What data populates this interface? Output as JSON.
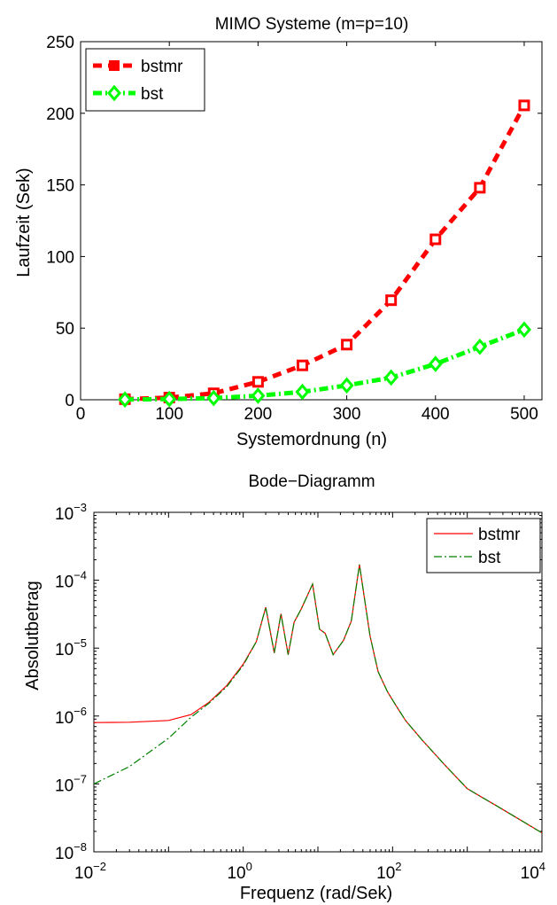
{
  "chart_data": [
    {
      "type": "line",
      "title": "MIMO Systeme (m=p=10)",
      "xlabel": "Systemordnung (n)",
      "ylabel": "Laufzeit (Sek)",
      "xlim": [
        0,
        520
      ],
      "ylim": [
        0,
        250
      ],
      "xticks": [
        0,
        100,
        200,
        300,
        400,
        500
      ],
      "yticks": [
        0,
        50,
        100,
        150,
        200,
        250
      ],
      "x_tick_labels": [
        "0",
        "100",
        "200",
        "300",
        "400",
        "500"
      ],
      "y_tick_labels": [
        "0",
        "50",
        "100",
        "150",
        "200",
        "250"
      ],
      "grid": false,
      "legend_position": "top-left",
      "x": [
        50,
        100,
        150,
        200,
        250,
        300,
        350,
        400,
        450,
        500
      ],
      "series": [
        {
          "name": "bstmr",
          "color": "#ff0000",
          "style": "dashed",
          "marker": "square",
          "values": [
            0.4,
            1.5,
            4.5,
            12.5,
            24,
            38.5,
            69.5,
            112,
            148,
            205.5
          ]
        },
        {
          "name": "bst",
          "color": "#00ff00",
          "style": "dash-dot",
          "marker": "diamond",
          "values": [
            0.2,
            0.5,
            1.2,
            2.8,
            5.5,
            10,
            15.5,
            25,
            37,
            49
          ]
        }
      ]
    },
    {
      "type": "line",
      "title": "Bode−Diagramm",
      "xlabel": "Frequenz  (rad/Sek)",
      "ylabel": "Absolutbetrag",
      "xscale": "log",
      "yscale": "log",
      "xlim": [
        0.01,
        10000
      ],
      "ylim": [
        1e-08,
        0.001
      ],
      "x_tick_labels": [
        {
          "base": "10",
          "exp": "−2",
          "value": 0.01
        },
        {
          "base": "10",
          "exp": "0",
          "value": 1
        },
        {
          "base": "10",
          "exp": "2",
          "value": 100
        },
        {
          "base": "10",
          "exp": "4",
          "value": 10000
        }
      ],
      "y_tick_labels": [
        {
          "base": "10",
          "exp": "−8",
          "value": 1e-08
        },
        {
          "base": "10",
          "exp": "−7",
          "value": 1e-07
        },
        {
          "base": "10",
          "exp": "−6",
          "value": 1e-06
        },
        {
          "base": "10",
          "exp": "−5",
          "value": 1e-05
        },
        {
          "base": "10",
          "exp": "−4",
          "value": 0.0001
        },
        {
          "base": "10",
          "exp": "−3",
          "value": 0.001
        }
      ],
      "grid": false,
      "legend_position": "top-right",
      "series": [
        {
          "name": "bstmr",
          "color": "#ff0000",
          "style": "solid",
          "x": [
            0.01,
            0.03,
            0.1,
            0.2,
            0.35,
            0.6,
            1.0,
            1.5,
            2.0,
            2.6,
            3.2,
            4.0,
            4.8,
            6.0,
            8.5,
            10.5,
            12.5,
            16,
            22,
            28,
            36,
            50,
            64,
            85,
            110,
            150,
            250,
            500,
            1000,
            3000,
            10000
          ],
          "values": [
            8e-07,
            8.1e-07,
            8.6e-07,
            1.05e-06,
            1.6e-06,
            2.8e-06,
            5.8e-06,
            1.25e-05,
            4e-05,
            8.5e-06,
            3.2e-05,
            8e-06,
            2.4e-05,
            3.8e-05,
            8.8e-05,
            1.9e-05,
            1.65e-05,
            8e-06,
            1.3e-05,
            2.5e-05,
            0.00017,
            1.5e-05,
            4.5e-06,
            2.3e-06,
            1.45e-06,
            8.5e-07,
            4.4e-07,
            1.9e-07,
            8.5e-08,
            4.2e-08,
            1.9e-08
          ]
        },
        {
          "name": "bst",
          "color": "#008000",
          "style": "dash-dot",
          "x": [
            0.01,
            0.03,
            0.1,
            0.2,
            0.35,
            0.6,
            1.0,
            1.5,
            2.0,
            2.6,
            3.2,
            4.0,
            4.8,
            6.0,
            8.5,
            10.5,
            12.5,
            16,
            22,
            28,
            36,
            50,
            64,
            85,
            110,
            150,
            250,
            500,
            1000,
            3000,
            10000
          ],
          "values": [
            1e-07,
            1.8e-07,
            4.7e-07,
            9.6e-07,
            1.55e-06,
            2.7e-06,
            5.6e-06,
            1.25e-05,
            4e-05,
            8.5e-06,
            3.2e-05,
            8e-06,
            2.4e-05,
            3.8e-05,
            8.8e-05,
            1.9e-05,
            1.65e-05,
            8e-06,
            1.3e-05,
            2.5e-05,
            0.00017,
            1.5e-05,
            4.5e-06,
            2.3e-06,
            1.45e-06,
            8.5e-07,
            4.4e-07,
            1.9e-07,
            8.5e-08,
            4.2e-08,
            1.9e-08
          ]
        }
      ]
    }
  ]
}
